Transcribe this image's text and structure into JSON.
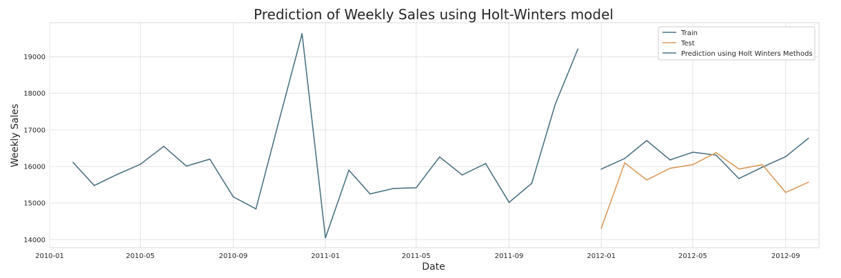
{
  "chart_data": {
    "type": "line",
    "title": "Prediction of Weekly Sales using Holt-Winters model",
    "xlabel": "Date",
    "ylabel": "Weekly Sales",
    "xlim": [
      "2010-01-01",
      "2012-10-15"
    ],
    "ylim": [
      13780,
      19930
    ],
    "grid": true,
    "legend_position": "top-right",
    "x_ticks": [
      "2010-01",
      "2010-05",
      "2010-09",
      "2011-01",
      "2011-05",
      "2011-09",
      "2012-01",
      "2012-05",
      "2012-09"
    ],
    "y_ticks": [
      14000,
      15000,
      16000,
      17000,
      18000,
      19000
    ],
    "series": [
      {
        "name": "Train",
        "color": "#4c7282",
        "dates": [
          "2010-02-01",
          "2010-03-01",
          "2010-04-01",
          "2010-05-01",
          "2010-06-01",
          "2010-07-01",
          "2010-08-01",
          "2010-09-01",
          "2010-10-01",
          "2010-11-01",
          "2010-12-01",
          "2011-01-01",
          "2011-02-01",
          "2011-03-01",
          "2011-04-01",
          "2011-05-01",
          "2011-06-01",
          "2011-07-01",
          "2011-08-01",
          "2011-09-01",
          "2011-10-01",
          "2011-11-01",
          "2011-12-01"
        ],
        "values": [
          16110,
          15480,
          15790,
          16060,
          16550,
          16010,
          16200,
          15170,
          14840,
          17290,
          19630,
          14050,
          15900,
          15250,
          15400,
          15420,
          16260,
          15770,
          16080,
          15020,
          15540,
          17700,
          19210
        ]
      },
      {
        "name": "Test",
        "color": "#dd9a5b",
        "dates": [
          "2012-01-01",
          "2012-02-01",
          "2012-03-01",
          "2012-04-01",
          "2012-05-01",
          "2012-06-01",
          "2012-07-01",
          "2012-08-01",
          "2012-09-01",
          "2012-10-01"
        ],
        "values": [
          14320,
          16100,
          15630,
          15950,
          16050,
          16380,
          15930,
          16050,
          15290,
          15570
        ]
      },
      {
        "name": "Prediction using Holt Winters Methods",
        "color": "#4c7282",
        "dates": [
          "2012-01-01",
          "2012-02-01",
          "2012-03-01",
          "2012-04-01",
          "2012-05-01",
          "2012-06-01",
          "2012-07-01",
          "2012-08-01",
          "2012-09-01",
          "2012-10-01"
        ],
        "values": [
          15930,
          16220,
          16710,
          16180,
          16390,
          16310,
          15670,
          15980,
          16270,
          16770
        ]
      }
    ]
  }
}
